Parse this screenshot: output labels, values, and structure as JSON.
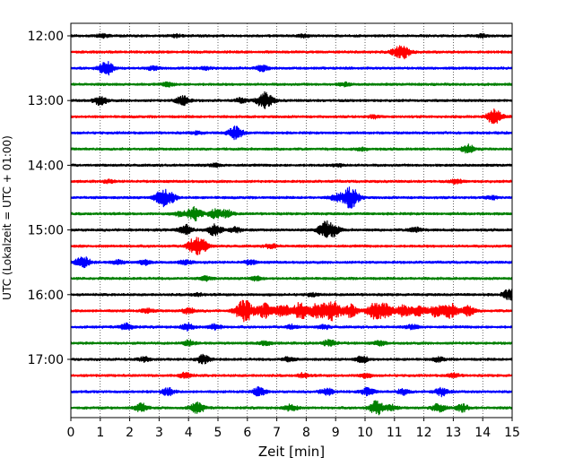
{
  "chart_data": {
    "type": "line",
    "title": "",
    "xlabel": "Zeit  [min]",
    "ylabel": "UTC (Lokalzeit = UTC + 01:00)",
    "xlim": [
      0,
      15
    ],
    "x_ticks": [
      0,
      1,
      2,
      3,
      4,
      5,
      6,
      7,
      8,
      9,
      10,
      11,
      12,
      13,
      14,
      15
    ],
    "x_tick_labels": [
      "0",
      "1",
      "2",
      "3",
      "4",
      "5",
      "6",
      "7",
      "8",
      "9",
      "10",
      "11",
      "12",
      "13",
      "14",
      "15"
    ],
    "y_tick_labels": [
      "12:00",
      "13:00",
      "14:00",
      "15:00",
      "16:00",
      "17:00"
    ],
    "grid": "vertical dotted",
    "line_colors": [
      "#000000",
      "#ff0000",
      "#0000ff",
      "#008000"
    ],
    "traces": [
      {
        "start": "12:00",
        "color": "#000000",
        "events": [
          [
            1.1,
            0.25
          ],
          [
            3.6,
            0.2
          ],
          [
            7.9,
            0.2
          ],
          [
            14.0,
            0.2
          ]
        ]
      },
      {
        "start": "12:15",
        "color": "#ff0000",
        "events": [
          [
            11.3,
            0.9
          ],
          [
            11.0,
            0.3
          ]
        ]
      },
      {
        "start": "12:30",
        "color": "#0000ff",
        "events": [
          [
            1.2,
            1.0
          ],
          [
            2.8,
            0.3
          ],
          [
            6.5,
            0.4
          ],
          [
            4.6,
            0.2
          ]
        ]
      },
      {
        "start": "12:45",
        "color": "#008000",
        "events": [
          [
            3.3,
            0.3
          ],
          [
            9.3,
            0.25
          ]
        ]
      },
      {
        "start": "13:00",
        "color": "#000000",
        "events": [
          [
            1.0,
            0.6
          ],
          [
            3.8,
            0.7
          ],
          [
            6.6,
            1.2
          ],
          [
            5.8,
            0.3
          ]
        ]
      },
      {
        "start": "13:15",
        "color": "#ff0000",
        "events": [
          [
            14.4,
            1.1
          ],
          [
            10.3,
            0.2
          ]
        ]
      },
      {
        "start": "13:30",
        "color": "#0000ff",
        "events": [
          [
            5.6,
            0.9
          ],
          [
            4.3,
            0.2
          ]
        ]
      },
      {
        "start": "13:45",
        "color": "#008000",
        "events": [
          [
            13.5,
            0.6
          ],
          [
            9.9,
            0.2
          ]
        ]
      },
      {
        "start": "14:00",
        "color": "#000000",
        "events": [
          [
            4.9,
            0.2
          ],
          [
            9.1,
            0.2
          ]
        ]
      },
      {
        "start": "14:15",
        "color": "#ff0000",
        "events": [
          [
            1.3,
            0.2
          ],
          [
            13.1,
            0.3
          ]
        ]
      },
      {
        "start": "14:30",
        "color": "#0000ff",
        "events": [
          [
            3.1,
            1.1
          ],
          [
            3.4,
            0.6
          ],
          [
            9.5,
            1.5
          ],
          [
            9.0,
            0.4
          ],
          [
            14.3,
            0.25
          ]
        ]
      },
      {
        "start": "14:45",
        "color": "#008000",
        "events": [
          [
            4.2,
            1.0
          ],
          [
            4.9,
            0.6
          ],
          [
            5.3,
            0.5
          ],
          [
            3.7,
            0.3
          ]
        ]
      },
      {
        "start": "15:00",
        "color": "#000000",
        "events": [
          [
            3.9,
            0.7
          ],
          [
            4.9,
            0.8
          ],
          [
            5.6,
            0.4
          ],
          [
            8.6,
            1.0
          ],
          [
            8.9,
            0.8
          ],
          [
            11.7,
            0.4
          ]
        ]
      },
      {
        "start": "15:15",
        "color": "#ff0000",
        "events": [
          [
            4.2,
            1.1
          ],
          [
            4.5,
            0.6
          ],
          [
            6.8,
            0.3
          ]
        ]
      },
      {
        "start": "15:30",
        "color": "#0000ff",
        "events": [
          [
            0.4,
            0.9
          ],
          [
            1.6,
            0.3
          ],
          [
            2.5,
            0.3
          ],
          [
            3.9,
            0.3
          ],
          [
            6.1,
            0.3
          ]
        ]
      },
      {
        "start": "15:45",
        "color": "#008000",
        "events": [
          [
            4.6,
            0.3
          ],
          [
            6.3,
            0.3
          ]
        ]
      },
      {
        "start": "16:00",
        "color": "#000000",
        "events": [
          [
            14.9,
            0.7
          ],
          [
            4.3,
            0.2
          ],
          [
            8.2,
            0.2
          ]
        ]
      },
      {
        "start": "16:15",
        "color": "#ff0000",
        "events": [
          [
            5.9,
            1.6
          ],
          [
            6.6,
            1.0
          ],
          [
            7.2,
            0.9
          ],
          [
            7.8,
            1.2
          ],
          [
            8.4,
            1.1
          ],
          [
            8.9,
            1.4
          ],
          [
            9.5,
            0.9
          ],
          [
            10.3,
            1.0
          ],
          [
            10.7,
            1.1
          ],
          [
            11.3,
            0.8
          ],
          [
            11.8,
            0.9
          ],
          [
            12.4,
            0.8
          ],
          [
            12.9,
            1.0
          ],
          [
            13.5,
            0.7
          ],
          [
            4.0,
            0.4
          ],
          [
            2.6,
            0.3
          ]
        ]
      },
      {
        "start": "16:30",
        "color": "#0000ff",
        "events": [
          [
            1.9,
            0.5
          ],
          [
            4.0,
            0.5
          ],
          [
            4.9,
            0.4
          ],
          [
            7.5,
            0.3
          ],
          [
            8.6,
            0.3
          ],
          [
            11.6,
            0.3
          ]
        ]
      },
      {
        "start": "16:45",
        "color": "#008000",
        "events": [
          [
            4.0,
            0.4
          ],
          [
            8.8,
            0.5
          ],
          [
            6.6,
            0.3
          ],
          [
            10.5,
            0.3
          ]
        ]
      },
      {
        "start": "17:00",
        "color": "#000000",
        "events": [
          [
            4.5,
            0.6
          ],
          [
            9.9,
            0.5
          ],
          [
            2.5,
            0.3
          ],
          [
            7.4,
            0.3
          ],
          [
            12.5,
            0.3
          ]
        ]
      },
      {
        "start": "17:15",
        "color": "#ff0000",
        "events": [
          [
            3.9,
            0.4
          ],
          [
            7.9,
            0.3
          ],
          [
            10.0,
            0.3
          ],
          [
            13.0,
            0.3
          ]
        ]
      },
      {
        "start": "17:30",
        "color": "#0000ff",
        "events": [
          [
            3.3,
            0.5
          ],
          [
            6.4,
            0.6
          ],
          [
            8.7,
            0.5
          ],
          [
            10.1,
            0.5
          ],
          [
            11.3,
            0.4
          ],
          [
            12.6,
            0.6
          ]
        ]
      },
      {
        "start": "17:45",
        "color": "#008000",
        "events": [
          [
            2.4,
            0.6
          ],
          [
            4.3,
            0.8
          ],
          [
            7.5,
            0.5
          ],
          [
            10.4,
            1.0
          ],
          [
            10.9,
            0.4
          ],
          [
            12.5,
            0.6
          ],
          [
            13.3,
            0.5
          ]
        ]
      }
    ]
  }
}
